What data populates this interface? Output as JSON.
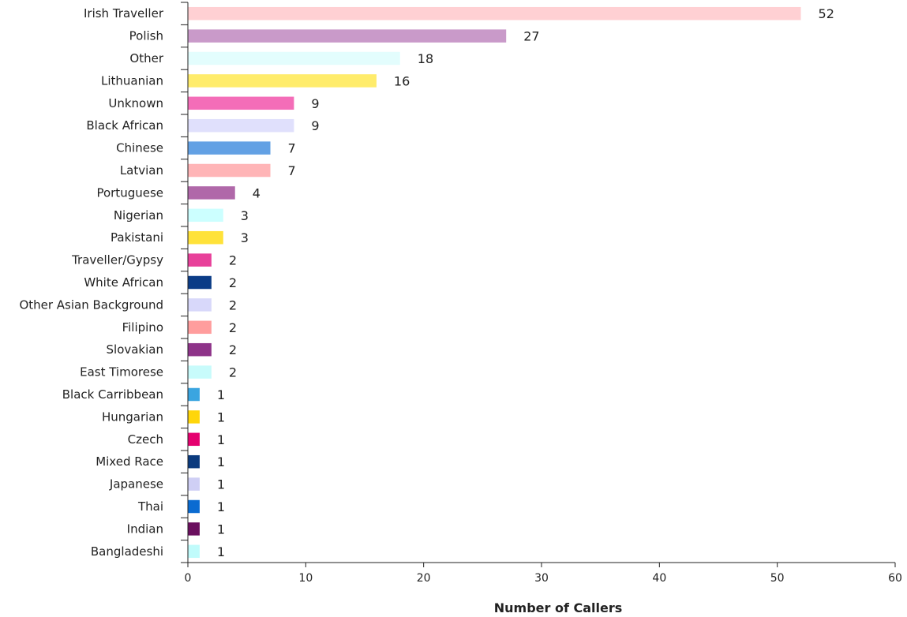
{
  "chart_data": {
    "type": "bar",
    "orientation": "horizontal",
    "xlabel": "Number of Callers",
    "ylabel": "",
    "xlim": [
      0,
      60
    ],
    "xticks": [
      0,
      10,
      20,
      30,
      40,
      50,
      60
    ],
    "grid": false,
    "categories": [
      "Irish Traveller",
      "Polish",
      "Other",
      "Lithuanian",
      "Unknown",
      "Black African",
      "Chinese",
      "Latvian",
      "Portuguese",
      "Nigerian",
      "Pakistani",
      "Traveller/Gypsy",
      "White African",
      "Other Asian Background",
      "Filipino",
      "Slovakian",
      "East Timorese",
      "Black Carribbean",
      "Hungarian",
      "Czech",
      "Mixed Race",
      "Japanese",
      "Thai",
      "Indian",
      "Bangladeshi"
    ],
    "values": [
      52,
      27,
      18,
      16,
      9,
      9,
      7,
      7,
      4,
      3,
      3,
      2,
      2,
      2,
      2,
      2,
      2,
      1,
      1,
      1,
      1,
      1,
      1,
      1,
      1
    ],
    "colors": [
      "#ffd0d3",
      "#c99ac9",
      "#e3fdfd",
      "#ffec6b",
      "#f46db8",
      "#e0e0fc",
      "#63a1e4",
      "#ffb5b7",
      "#b068a9",
      "#ccffff",
      "#ffe23a",
      "#e8409a",
      "#0b3c87",
      "#d8d8fa",
      "#ff9d9d",
      "#8e3389",
      "#c8fbfb",
      "#3aa5e0",
      "#ffd60a",
      "#e5006f",
      "#0a3a7e",
      "#cfcff5",
      "#0a6bd1",
      "#6b0f5f",
      "#c0fbfb"
    ]
  }
}
